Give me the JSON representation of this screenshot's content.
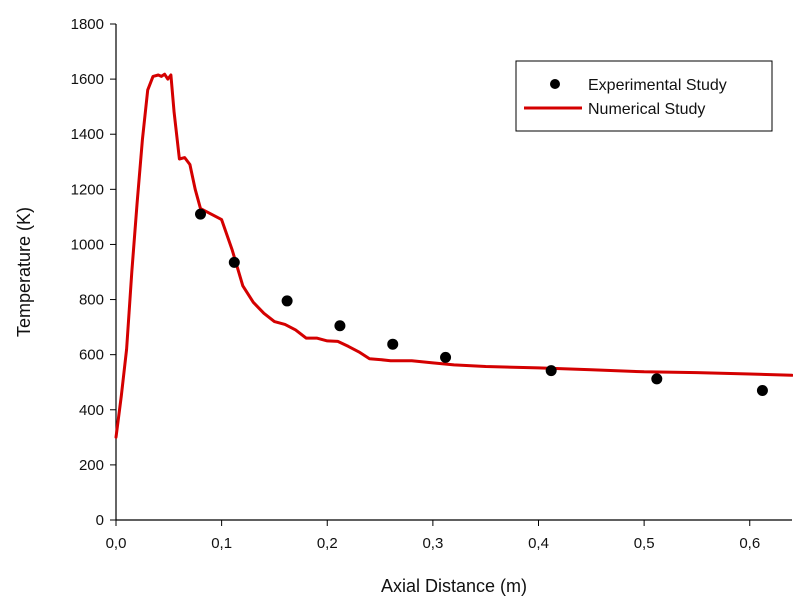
{
  "chart_data": {
    "type": "scatter",
    "title": "",
    "xlabel": "Axial Distance (m)",
    "ylabel": "Temperature (K)",
    "xlim": [
      0,
      0.64
    ],
    "ylim": [
      0,
      1800
    ],
    "x_ticks": [
      0,
      0.1,
      0.2,
      0.3,
      0.4,
      0.5,
      0.6
    ],
    "x_tick_labels": [
      "0,0",
      "0,1",
      "0,2",
      "0,3",
      "0,4",
      "0,5",
      "0,6"
    ],
    "y_ticks": [
      0,
      200,
      400,
      600,
      800,
      1000,
      1200,
      1400,
      1600,
      1800
    ],
    "y_tick_labels": [
      "0",
      "200",
      "400",
      "600",
      "800",
      "1000",
      "1200",
      "1400",
      "1600",
      "1800"
    ],
    "grid": false,
    "legend_position": "top-right",
    "series": [
      {
        "name": "Experimental Study",
        "kind": "scatter",
        "color": "#000000",
        "x": [
          0.08,
          0.112,
          0.162,
          0.212,
          0.262,
          0.312,
          0.412,
          0.512,
          0.612
        ],
        "y": [
          1110,
          935,
          795,
          705,
          638,
          590,
          542,
          512,
          470
        ]
      },
      {
        "name": "Numerical Study",
        "kind": "line",
        "color": "#d40000",
        "x": [
          0,
          0.005,
          0.01,
          0.015,
          0.02,
          0.025,
          0.03,
          0.035,
          0.04,
          0.043,
          0.046,
          0.049,
          0.052,
          0.055,
          0.06,
          0.065,
          0.07,
          0.075,
          0.08,
          0.09,
          0.1,
          0.11,
          0.12,
          0.13,
          0.14,
          0.15,
          0.16,
          0.17,
          0.18,
          0.19,
          0.2,
          0.21,
          0.22,
          0.23,
          0.24,
          0.25,
          0.26,
          0.27,
          0.28,
          0.3,
          0.32,
          0.35,
          0.4,
          0.45,
          0.5,
          0.55,
          0.6,
          0.64
        ],
        "y": [
          300,
          450,
          620,
          900,
          1150,
          1380,
          1560,
          1610,
          1615,
          1610,
          1618,
          1600,
          1615,
          1480,
          1310,
          1315,
          1290,
          1200,
          1130,
          1110,
          1090,
          980,
          850,
          790,
          750,
          720,
          710,
          690,
          660,
          660,
          650,
          648,
          630,
          610,
          585,
          582,
          578,
          578,
          578,
          570,
          563,
          557,
          552,
          545,
          538,
          535,
          530,
          525
        ]
      }
    ]
  }
}
